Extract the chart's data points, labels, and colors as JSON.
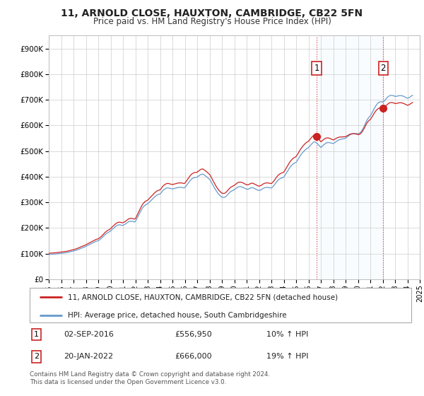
{
  "title": "11, ARNOLD CLOSE, HAUXTON, CAMBRIDGE, CB22 5FN",
  "subtitle": "Price paid vs. HM Land Registry's House Price Index (HPI)",
  "legend_line1": "11, ARNOLD CLOSE, HAUXTON, CAMBRIDGE, CB22 5FN (detached house)",
  "legend_line2": "HPI: Average price, detached house, South Cambridgeshire",
  "footnote": "Contains HM Land Registry data © Crown copyright and database right 2024.\nThis data is licensed under the Open Government Licence v3.0.",
  "annotation1_date": "02-SEP-2016",
  "annotation1_price": "£556,950",
  "annotation1_hpi": "10% ↑ HPI",
  "annotation2_date": "20-JAN-2022",
  "annotation2_price": "£666,000",
  "annotation2_hpi": "19% ↑ HPI",
  "red_color": "#cc2222",
  "blue_color": "#6699cc",
  "shade_color": "#ddeeff",
  "vline_color": "#dd4444",
  "ylim": [
    0,
    950000
  ],
  "yticks": [
    0,
    100000,
    200000,
    300000,
    400000,
    500000,
    600000,
    700000,
    800000,
    900000
  ],
  "ytick_labels": [
    "£0",
    "£100K",
    "£200K",
    "£300K",
    "£400K",
    "£500K",
    "£600K",
    "£700K",
    "£800K",
    "£900K"
  ],
  "hpi_dates": [
    1995.0,
    1995.083,
    1995.167,
    1995.25,
    1995.333,
    1995.417,
    1995.5,
    1995.583,
    1995.667,
    1995.75,
    1995.833,
    1995.917,
    1996.0,
    1996.083,
    1996.167,
    1996.25,
    1996.333,
    1996.417,
    1996.5,
    1996.583,
    1996.667,
    1996.75,
    1996.833,
    1996.917,
    1997.0,
    1997.083,
    1997.167,
    1997.25,
    1997.333,
    1997.417,
    1997.5,
    1997.583,
    1997.667,
    1997.75,
    1997.833,
    1997.917,
    1998.0,
    1998.083,
    1998.167,
    1998.25,
    1998.333,
    1998.417,
    1998.5,
    1998.583,
    1998.667,
    1998.75,
    1998.833,
    1998.917,
    1999.0,
    1999.083,
    1999.167,
    1999.25,
    1999.333,
    1999.417,
    1999.5,
    1999.583,
    1999.667,
    1999.75,
    1999.833,
    1999.917,
    2000.0,
    2000.083,
    2000.167,
    2000.25,
    2000.333,
    2000.417,
    2000.5,
    2000.583,
    2000.667,
    2000.75,
    2000.833,
    2000.917,
    2001.0,
    2001.083,
    2001.167,
    2001.25,
    2001.333,
    2001.417,
    2001.5,
    2001.583,
    2001.667,
    2001.75,
    2001.833,
    2001.917,
    2002.0,
    2002.083,
    2002.167,
    2002.25,
    2002.333,
    2002.417,
    2002.5,
    2002.583,
    2002.667,
    2002.75,
    2002.833,
    2002.917,
    2003.0,
    2003.083,
    2003.167,
    2003.25,
    2003.333,
    2003.417,
    2003.5,
    2003.583,
    2003.667,
    2003.75,
    2003.833,
    2003.917,
    2004.0,
    2004.083,
    2004.167,
    2004.25,
    2004.333,
    2004.417,
    2004.5,
    2004.583,
    2004.667,
    2004.75,
    2004.833,
    2004.917,
    2005.0,
    2005.083,
    2005.167,
    2005.25,
    2005.333,
    2005.417,
    2005.5,
    2005.583,
    2005.667,
    2005.75,
    2005.833,
    2005.917,
    2006.0,
    2006.083,
    2006.167,
    2006.25,
    2006.333,
    2006.417,
    2006.5,
    2006.583,
    2006.667,
    2006.75,
    2006.833,
    2006.917,
    2007.0,
    2007.083,
    2007.167,
    2007.25,
    2007.333,
    2007.417,
    2007.5,
    2007.583,
    2007.667,
    2007.75,
    2007.833,
    2007.917,
    2008.0,
    2008.083,
    2008.167,
    2008.25,
    2008.333,
    2008.417,
    2008.5,
    2008.583,
    2008.667,
    2008.75,
    2008.833,
    2008.917,
    2009.0,
    2009.083,
    2009.167,
    2009.25,
    2009.333,
    2009.417,
    2009.5,
    2009.583,
    2009.667,
    2009.75,
    2009.833,
    2009.917,
    2010.0,
    2010.083,
    2010.167,
    2010.25,
    2010.333,
    2010.417,
    2010.5,
    2010.583,
    2010.667,
    2010.75,
    2010.833,
    2010.917,
    2011.0,
    2011.083,
    2011.167,
    2011.25,
    2011.333,
    2011.417,
    2011.5,
    2011.583,
    2011.667,
    2011.75,
    2011.833,
    2011.917,
    2012.0,
    2012.083,
    2012.167,
    2012.25,
    2012.333,
    2012.417,
    2012.5,
    2012.583,
    2012.667,
    2012.75,
    2012.833,
    2012.917,
    2013.0,
    2013.083,
    2013.167,
    2013.25,
    2013.333,
    2013.417,
    2013.5,
    2013.583,
    2013.667,
    2013.75,
    2013.833,
    2013.917,
    2014.0,
    2014.083,
    2014.167,
    2014.25,
    2014.333,
    2014.417,
    2014.5,
    2014.583,
    2014.667,
    2014.75,
    2014.833,
    2014.917,
    2015.0,
    2015.083,
    2015.167,
    2015.25,
    2015.333,
    2015.417,
    2015.5,
    2015.583,
    2015.667,
    2015.75,
    2015.833,
    2015.917,
    2016.0,
    2016.083,
    2016.167,
    2016.25,
    2016.333,
    2016.417,
    2016.5,
    2016.583,
    2016.667,
    2016.75,
    2016.833,
    2016.917,
    2017.0,
    2017.083,
    2017.167,
    2017.25,
    2017.333,
    2017.417,
    2017.5,
    2017.583,
    2017.667,
    2017.75,
    2017.833,
    2017.917,
    2018.0,
    2018.083,
    2018.167,
    2018.25,
    2018.333,
    2018.417,
    2018.5,
    2018.583,
    2018.667,
    2018.75,
    2018.833,
    2018.917,
    2019.0,
    2019.083,
    2019.167,
    2019.25,
    2019.333,
    2019.417,
    2019.5,
    2019.583,
    2019.667,
    2019.75,
    2019.833,
    2019.917,
    2020.0,
    2020.083,
    2020.167,
    2020.25,
    2020.333,
    2020.417,
    2020.5,
    2020.583,
    2020.667,
    2020.75,
    2020.833,
    2020.917,
    2021.0,
    2021.083,
    2021.167,
    2021.25,
    2021.333,
    2021.417,
    2021.5,
    2021.583,
    2021.667,
    2021.75,
    2021.833,
    2021.917,
    2022.0,
    2022.083,
    2022.167,
    2022.25,
    2022.333,
    2022.417,
    2022.5,
    2022.583,
    2022.667,
    2022.75,
    2022.833,
    2022.917,
    2023.0,
    2023.083,
    2023.167,
    2023.25,
    2023.333,
    2023.417,
    2023.5,
    2023.583,
    2023.667,
    2023.75,
    2023.833,
    2023.917,
    2024.0,
    2024.083,
    2024.167,
    2024.25,
    2024.333,
    2024.417
  ],
  "hpi_values": [
    96000,
    96500,
    97000,
    97500,
    97200,
    97800,
    98000,
    98500,
    99000,
    99500,
    100000,
    100500,
    101000,
    101500,
    102000,
    102500,
    103000,
    103500,
    104000,
    105000,
    106000,
    107000,
    108000,
    109000,
    110000,
    111000,
    112000,
    113500,
    115000,
    116500,
    118000,
    120000,
    121500,
    123000,
    124500,
    126000,
    128000,
    130000,
    132000,
    134000,
    136000,
    138000,
    140000,
    142000,
    144000,
    146000,
    148000,
    149000,
    150000,
    153000,
    156000,
    159000,
    163000,
    167000,
    171000,
    175000,
    178000,
    181000,
    183000,
    185000,
    188000,
    192000,
    196000,
    199000,
    203000,
    206000,
    209000,
    211000,
    212000,
    212000,
    211000,
    210000,
    210000,
    212000,
    214000,
    217000,
    220000,
    223000,
    225000,
    226000,
    226000,
    226000,
    225000,
    223000,
    225000,
    232000,
    240000,
    248000,
    256000,
    264000,
    271000,
    278000,
    283000,
    287000,
    290000,
    292000,
    294000,
    298000,
    302000,
    306000,
    310000,
    314000,
    318000,
    322000,
    325000,
    328000,
    330000,
    331000,
    332000,
    337000,
    342000,
    347000,
    350000,
    353000,
    355000,
    356000,
    356000,
    355000,
    354000,
    353000,
    352000,
    353000,
    354000,
    355000,
    356000,
    357000,
    358000,
    358000,
    358000,
    358000,
    357000,
    356000,
    357000,
    362000,
    367000,
    373000,
    378000,
    384000,
    388000,
    392000,
    394000,
    396000,
    397000,
    397000,
    398000,
    401000,
    404000,
    407000,
    409000,
    410000,
    409000,
    406000,
    403000,
    400000,
    397000,
    393000,
    390000,
    384000,
    377000,
    369000,
    362000,
    355000,
    348000,
    342000,
    336000,
    331000,
    327000,
    323000,
    320000,
    319000,
    319000,
    320000,
    323000,
    327000,
    332000,
    336000,
    340000,
    343000,
    345000,
    347000,
    349000,
    352000,
    355000,
    358000,
    360000,
    361000,
    361000,
    360000,
    359000,
    357000,
    355000,
    353000,
    351000,
    351000,
    352000,
    354000,
    356000,
    357000,
    357000,
    355000,
    353000,
    351000,
    349000,
    347000,
    346000,
    347000,
    349000,
    351000,
    354000,
    356000,
    357000,
    358000,
    358000,
    358000,
    357000,
    356000,
    356000,
    359000,
    363000,
    368000,
    374000,
    379000,
    384000,
    388000,
    391000,
    393000,
    395000,
    396000,
    398000,
    404000,
    410000,
    417000,
    423000,
    430000,
    436000,
    441000,
    445000,
    449000,
    452000,
    454000,
    456000,
    462000,
    468000,
    475000,
    481000,
    487000,
    492000,
    497000,
    501000,
    505000,
    508000,
    511000,
    513000,
    518000,
    522000,
    527000,
    531000,
    535000,
    536000,
    534000,
    531000,
    527000,
    523000,
    518000,
    514000,
    517000,
    521000,
    525000,
    528000,
    531000,
    532000,
    533000,
    533000,
    532000,
    531000,
    530000,
    529000,
    531000,
    534000,
    537000,
    540000,
    542000,
    544000,
    545000,
    546000,
    547000,
    548000,
    549000,
    550000,
    553000,
    556000,
    559000,
    562000,
    564000,
    566000,
    567000,
    568000,
    568000,
    568000,
    568000,
    567000,
    568000,
    571000,
    575000,
    581000,
    588000,
    596000,
    605000,
    614000,
    622000,
    628000,
    633000,
    637000,
    644000,
    651000,
    659000,
    667000,
    674000,
    680000,
    685000,
    689000,
    691000,
    692000,
    692000,
    691000,
    693000,
    697000,
    702000,
    707000,
    711000,
    714000,
    716000,
    717000,
    717000,
    716000,
    715000,
    713000,
    713000,
    714000,
    715000,
    716000,
    716000,
    716000,
    715000,
    714000,
    712000,
    710000,
    708000,
    706000,
    707000,
    709000,
    712000,
    715000,
    717000
  ],
  "sale1_x": 2016.667,
  "sale1_y": 556950,
  "sale2_x": 2022.042,
  "sale2_y": 666000,
  "xtick_years": [
    1995,
    1996,
    1997,
    1998,
    1999,
    2000,
    2001,
    2002,
    2003,
    2004,
    2005,
    2006,
    2007,
    2008,
    2009,
    2010,
    2011,
    2012,
    2013,
    2014,
    2015,
    2016,
    2017,
    2018,
    2019,
    2020,
    2021,
    2022,
    2023,
    2024,
    2025
  ]
}
